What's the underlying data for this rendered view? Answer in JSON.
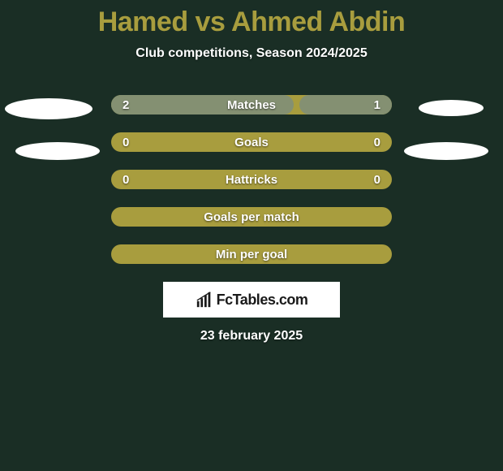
{
  "title": "Hamed vs Ahmed Abdin",
  "subtitle": "Club competitions, Season 2024/2025",
  "date": "23 february 2025",
  "brand": "FcTables.com",
  "colors": {
    "background": "#1a2e25",
    "bar_base": "#a89d3e",
    "bar_accent": "#849072",
    "title_color": "#a89d3e",
    "text_color": "#ffffff",
    "brand_bg": "#ffffff",
    "brand_text": "#1a1a1a"
  },
  "decor_ellipses": [
    {
      "class": "ellipse-top-left"
    },
    {
      "class": "ellipse-top-right"
    },
    {
      "class": "ellipse-mid-left"
    },
    {
      "class": "ellipse-mid-right"
    }
  ],
  "rows": [
    {
      "label": "Matches",
      "left_val": "2",
      "right_val": "1",
      "left_fill_pct": 65,
      "right_fill_pct": 33,
      "show_left_fill": true,
      "show_right_fill": true
    },
    {
      "label": "Goals",
      "left_val": "0",
      "right_val": "0",
      "left_fill_pct": 0,
      "right_fill_pct": 0,
      "show_left_fill": false,
      "show_right_fill": false
    },
    {
      "label": "Hattricks",
      "left_val": "0",
      "right_val": "0",
      "left_fill_pct": 0,
      "right_fill_pct": 0,
      "show_left_fill": false,
      "show_right_fill": false
    },
    {
      "label": "Goals per match",
      "left_val": "",
      "right_val": "",
      "left_fill_pct": 0,
      "right_fill_pct": 0,
      "show_left_fill": false,
      "show_right_fill": false
    },
    {
      "label": "Min per goal",
      "left_val": "",
      "right_val": "",
      "left_fill_pct": 0,
      "right_fill_pct": 0,
      "show_left_fill": false,
      "show_right_fill": false
    }
  ]
}
